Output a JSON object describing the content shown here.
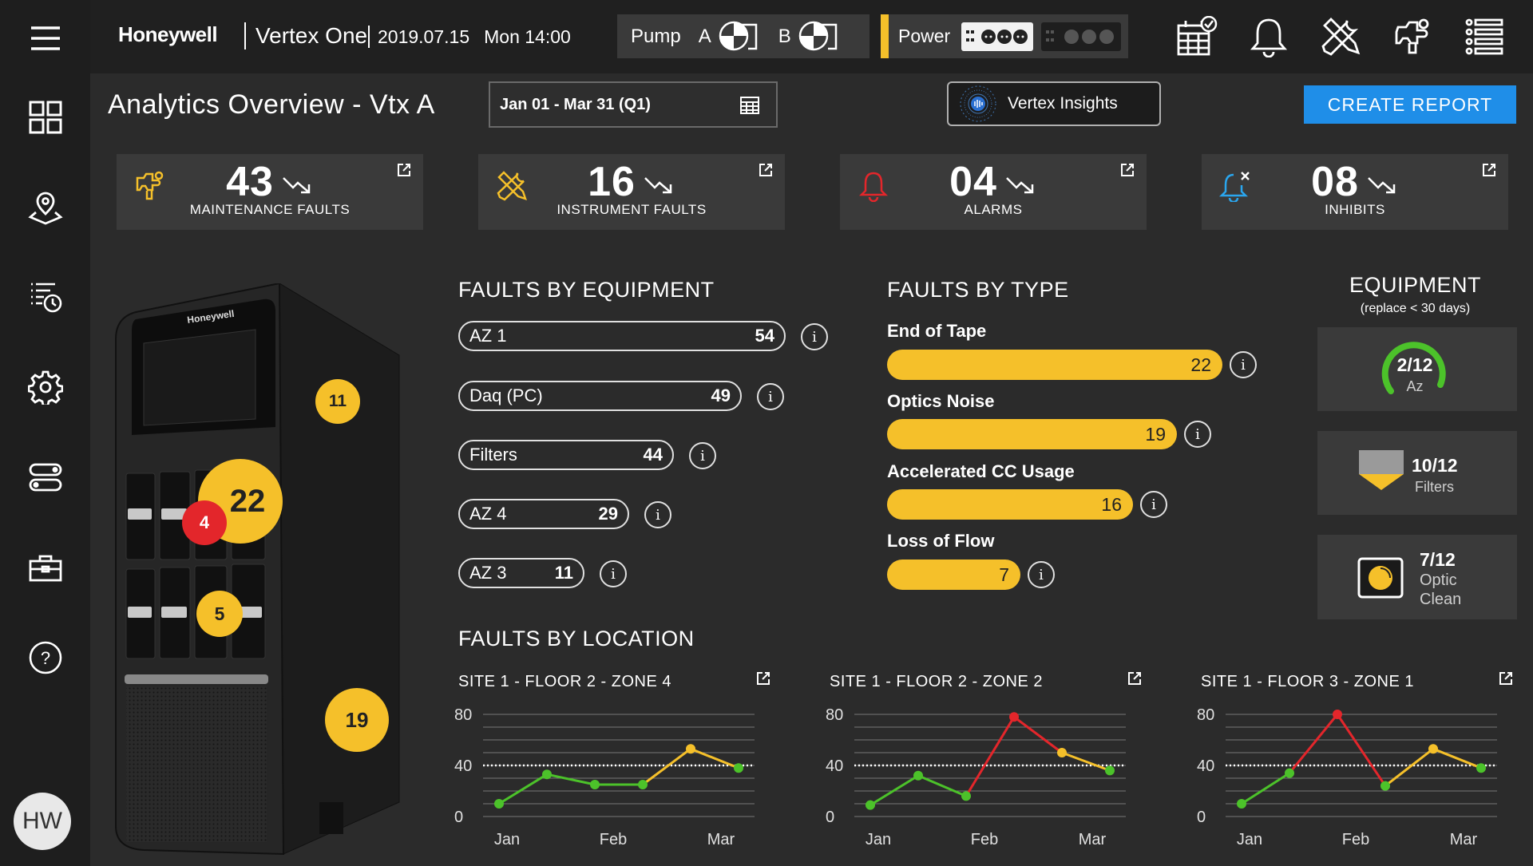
{
  "header": {
    "brand": "Honeywell",
    "product": "Vertex One",
    "date": "2019.07.15",
    "time": "Mon 14:00",
    "pump_label": "Pump",
    "pump_a": "A",
    "pump_b": "B",
    "power_label": "Power"
  },
  "page": {
    "title": "Analytics Overview  - Vtx A",
    "date_range": "Jan  01 - Mar 31 (Q1)",
    "insights_label": "Vertex Insights",
    "create_report": "CREATE REPORT"
  },
  "kpis": [
    {
      "value": "43",
      "label": "MAINTENANCE FAULTS",
      "icon": "maintenance-icon",
      "color": "#f5c02a"
    },
    {
      "value": "16",
      "label": "INSTRUMENT FAULTS",
      "icon": "tools-icon",
      "color": "#f5c02a"
    },
    {
      "value": "04",
      "label": "ALARMS",
      "icon": "bell-icon",
      "color": "#e3262b"
    },
    {
      "value": "08",
      "label": "INHIBITS",
      "icon": "bell-inhibit-icon",
      "color": "#2aa6ee"
    }
  ],
  "device": {
    "brand": "Honeywell",
    "badges": [
      "11",
      "22",
      "4",
      "5",
      "19"
    ]
  },
  "faults_by_equipment": {
    "title": "FAULTS BY EQUIPMENT",
    "items": [
      {
        "name": "AZ 1",
        "value": "54"
      },
      {
        "name": "Daq (PC)",
        "value": "49"
      },
      {
        "name": "Filters",
        "value": "44"
      },
      {
        "name": "AZ 4",
        "value": "29"
      },
      {
        "name": "AZ 3",
        "value": "11"
      }
    ]
  },
  "faults_by_type": {
    "title": "FAULTS BY TYPE",
    "items": [
      {
        "name": "End of Tape",
        "value": "22"
      },
      {
        "name": "Optics Noise",
        "value": "19"
      },
      {
        "name": "Accelerated CC Usage",
        "value": "16"
      },
      {
        "name": "Loss of Flow",
        "value": "7"
      }
    ]
  },
  "equipment": {
    "title": "EQUIPMENT",
    "subtitle": "(replace < 30 days)",
    "cards": [
      {
        "value": "2/12",
        "label": "Az"
      },
      {
        "value": "10/12",
        "label": "Filters"
      },
      {
        "value": "7/12",
        "label": "Optic",
        "label2": "Clean"
      }
    ]
  },
  "faults_by_location": {
    "title": "FAULTS BY LOCATION",
    "charts": [
      {
        "title": "SITE 1 - FLOOR 2 - ZONE 4"
      },
      {
        "title": "SITE 1 - FLOOR 2 - ZONE 2"
      },
      {
        "title": "SITE 1 - FLOOR 3 - ZONE 1"
      }
    ]
  },
  "chart_data": [
    {
      "type": "line",
      "title": "SITE 1 - FLOOR 2 - ZONE 4",
      "x_ticks": [
        "Jan",
        "Feb",
        "Mar"
      ],
      "y_ticks": [
        "80",
        "40",
        "0"
      ],
      "ylim": [
        0,
        80
      ],
      "threshold": 40,
      "series": [
        {
          "values": [
            10,
            33,
            25,
            25,
            53,
            38
          ]
        }
      ]
    },
    {
      "type": "line",
      "title": "SITE 1 - FLOOR 2 - ZONE 2",
      "x_ticks": [
        "Jan",
        "Feb",
        "Mar"
      ],
      "y_ticks": [
        "80",
        "40",
        "0"
      ],
      "ylim": [
        0,
        80
      ],
      "threshold": 40,
      "series": [
        {
          "values": [
            9,
            32,
            16,
            78,
            50,
            36
          ]
        }
      ]
    },
    {
      "type": "line",
      "title": "SITE 1 - FLOOR 3 - ZONE 1",
      "x_ticks": [
        "Jan",
        "Feb",
        "Mar"
      ],
      "y_ticks": [
        "80",
        "40",
        "0"
      ],
      "ylim": [
        0,
        80
      ],
      "threshold": 40,
      "series": [
        {
          "values": [
            10,
            34,
            80,
            24,
            53,
            38
          ]
        }
      ]
    }
  ],
  "sidebar": {
    "items": [
      "menu-icon",
      "dashboard-icon",
      "location-icon",
      "history-icon",
      "settings-icon",
      "toggles-icon",
      "toolbox-icon",
      "help-icon"
    ],
    "avatar": "HW"
  }
}
